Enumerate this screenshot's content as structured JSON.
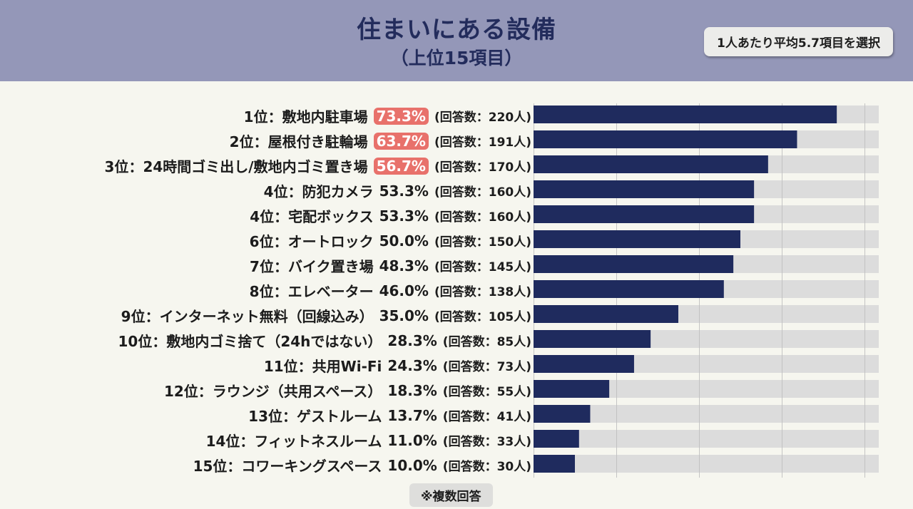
{
  "header": {
    "title": "住まいにある設備",
    "subtitle": "（上位15項目）",
    "average_badge": "1人あたり平均5.7項目を選択"
  },
  "footnote": "※複数回答",
  "colors": {
    "header_bg": "#9497b8",
    "title": "#232c5c",
    "bar": "#1f2b5e",
    "bar_track": "#dcdcdc",
    "highlight": "#e8716b"
  },
  "chart_data": {
    "type": "bar",
    "orientation": "horizontal",
    "xlim": [
      0,
      100
    ],
    "grid": true,
    "items": [
      {
        "rank": "1位",
        "label": "敷地内駐車場",
        "percent": "73.3%",
        "count": "(回答数：220人)",
        "value": 73.3,
        "highlight": true
      },
      {
        "rank": "2位",
        "label": "屋根付き駐輪場",
        "percent": "63.7%",
        "count": "(回答数：191人)",
        "value": 63.7,
        "highlight": true
      },
      {
        "rank": "3位",
        "label": "24時間ゴミ出し/敷地内ゴミ置き場",
        "percent": "56.7%",
        "count": "(回答数：170人)",
        "value": 56.7,
        "highlight": true
      },
      {
        "rank": "4位",
        "label": "防犯カメラ",
        "percent": "53.3%",
        "count": "(回答数：160人)",
        "value": 53.3,
        "highlight": false
      },
      {
        "rank": "4位",
        "label": "宅配ボックス",
        "percent": "53.3%",
        "count": "(回答数：160人)",
        "value": 53.3,
        "highlight": false
      },
      {
        "rank": "6位",
        "label": "オートロック",
        "percent": "50.0%",
        "count": "(回答数：150人)",
        "value": 50.0,
        "highlight": false
      },
      {
        "rank": "7位",
        "label": "バイク置き場",
        "percent": "48.3%",
        "count": "(回答数：145人)",
        "value": 48.3,
        "highlight": false
      },
      {
        "rank": "8位",
        "label": "エレベーター",
        "percent": "46.0%",
        "count": "(回答数：138人)",
        "value": 46.0,
        "highlight": false
      },
      {
        "rank": "9位",
        "label": "インターネット無料（回線込み）",
        "percent": "35.0%",
        "count": "(回答数：105人)",
        "value": 35.0,
        "highlight": false
      },
      {
        "rank": "10位",
        "label": "敷地内ゴミ捨て（24hではない）",
        "percent": "28.3%",
        "count": "(回答数：85人)",
        "value": 28.3,
        "highlight": false
      },
      {
        "rank": "11位",
        "label": "共用Wi-Fi",
        "percent": "24.3%",
        "count": "(回答数：73人)",
        "value": 24.3,
        "highlight": false
      },
      {
        "rank": "12位",
        "label": "ラウンジ（共用スペース）",
        "percent": "18.3%",
        "count": "(回答数：55人)",
        "value": 18.3,
        "highlight": false
      },
      {
        "rank": "13位",
        "label": "ゲストルーム",
        "percent": "13.7%",
        "count": "(回答数：41人)",
        "value": 13.7,
        "highlight": false
      },
      {
        "rank": "14位",
        "label": "フィットネスルーム",
        "percent": "11.0%",
        "count": "(回答数：33人)",
        "value": 11.0,
        "highlight": false
      },
      {
        "rank": "15位",
        "label": "コワーキングスペース",
        "percent": "10.0%",
        "count": "(回答数：30人)",
        "value": 10.0,
        "highlight": false
      }
    ]
  }
}
